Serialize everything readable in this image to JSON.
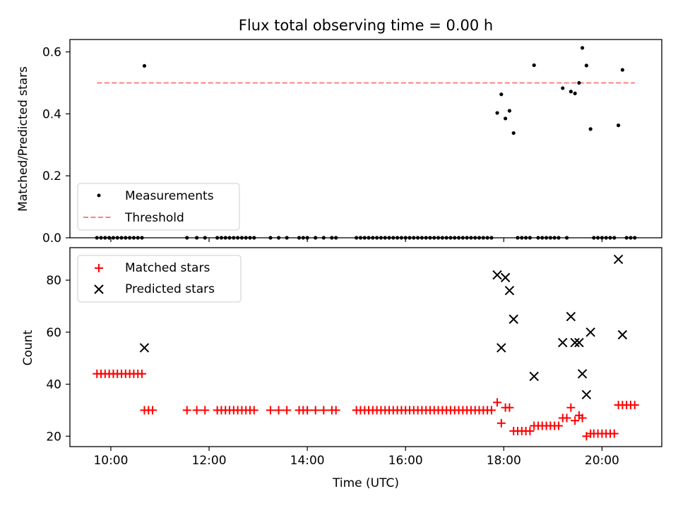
{
  "chart_data": [
    {
      "type": "scatter",
      "title": "Flux total observing time = 0.00 h",
      "xlabel": "",
      "ylabel": "Matched/Predicted stars",
      "xlim": [
        "09:10",
        "21:13"
      ],
      "ylim": [
        0,
        0.64
      ],
      "yticks": [
        0.0,
        0.2,
        0.4,
        0.6
      ],
      "ytick_labels": [
        "0.0",
        "0.2",
        "0.4",
        "0.6"
      ],
      "xticks": [
        "10:00",
        "12:00",
        "14:00",
        "16:00",
        "18:00",
        "20:00"
      ],
      "xtick_labels_visible": false,
      "legend": "lower-left",
      "threshold": {
        "name": "Threshold",
        "value": 0.5,
        "x_range": [
          "09:43",
          "20:40"
        ],
        "color": "#ff7f7f",
        "style": "dashed"
      },
      "series": [
        {
          "name": "Measurements",
          "color": "#000000",
          "marker": "dot",
          "points": [
            [
              "09:43",
              0
            ],
            [
              "09:48",
              0
            ],
            [
              "09:53",
              0
            ],
            [
              "09:58",
              0
            ],
            [
              "10:03",
              0
            ],
            [
              "10:08",
              0
            ],
            [
              "10:13",
              0
            ],
            [
              "10:18",
              0
            ],
            [
              "10:23",
              0
            ],
            [
              "10:28",
              0
            ],
            [
              "10:33",
              0
            ],
            [
              "10:38",
              0
            ],
            [
              "10:41",
              0.555
            ],
            [
              "11:33",
              0
            ],
            [
              "11:45",
              0
            ],
            [
              "11:55",
              0
            ],
            [
              "12:10",
              0
            ],
            [
              "12:15",
              0
            ],
            [
              "12:20",
              0
            ],
            [
              "12:25",
              0
            ],
            [
              "12:30",
              0
            ],
            [
              "12:35",
              0
            ],
            [
              "12:40",
              0
            ],
            [
              "12:45",
              0
            ],
            [
              "12:50",
              0
            ],
            [
              "12:55",
              0
            ],
            [
              "13:15",
              0
            ],
            [
              "13:25",
              0
            ],
            [
              "13:35",
              0
            ],
            [
              "13:50",
              0
            ],
            [
              "13:55",
              0
            ],
            [
              "14:00",
              0
            ],
            [
              "14:10",
              0
            ],
            [
              "14:20",
              0
            ],
            [
              "14:30",
              0
            ],
            [
              "14:35",
              0
            ],
            [
              "15:00",
              0
            ],
            [
              "15:05",
              0
            ],
            [
              "15:10",
              0
            ],
            [
              "15:15",
              0
            ],
            [
              "15:20",
              0
            ],
            [
              "15:25",
              0
            ],
            [
              "15:30",
              0
            ],
            [
              "15:35",
              0
            ],
            [
              "15:40",
              0
            ],
            [
              "15:45",
              0
            ],
            [
              "15:50",
              0
            ],
            [
              "15:55",
              0
            ],
            [
              "16:00",
              0
            ],
            [
              "16:05",
              0
            ],
            [
              "16:10",
              0
            ],
            [
              "16:15",
              0
            ],
            [
              "16:20",
              0
            ],
            [
              "16:25",
              0
            ],
            [
              "16:30",
              0
            ],
            [
              "16:35",
              0
            ],
            [
              "16:40",
              0
            ],
            [
              "16:45",
              0
            ],
            [
              "16:50",
              0
            ],
            [
              "16:55",
              0
            ],
            [
              "17:00",
              0
            ],
            [
              "17:05",
              0
            ],
            [
              "17:10",
              0
            ],
            [
              "17:15",
              0
            ],
            [
              "17:20",
              0
            ],
            [
              "17:25",
              0
            ],
            [
              "17:30",
              0
            ],
            [
              "17:35",
              0
            ],
            [
              "17:40",
              0
            ],
            [
              "17:45",
              0
            ],
            [
              "17:52",
              0.403
            ],
            [
              "17:57",
              0.463
            ],
            [
              "18:02",
              0.385
            ],
            [
              "18:07",
              0.41
            ],
            [
              "18:12",
              0.338
            ],
            [
              "18:17",
              0
            ],
            [
              "18:22",
              0
            ],
            [
              "18:27",
              0
            ],
            [
              "18:32",
              0
            ],
            [
              "18:37",
              0.557
            ],
            [
              "18:42",
              0
            ],
            [
              "18:47",
              0
            ],
            [
              "18:52",
              0
            ],
            [
              "18:57",
              0
            ],
            [
              "19:02",
              0
            ],
            [
              "19:07",
              0
            ],
            [
              "19:12",
              0.483
            ],
            [
              "19:17",
              0
            ],
            [
              "19:22",
              0.472
            ],
            [
              "19:27",
              0.466
            ],
            [
              "19:32",
              0.5
            ],
            [
              "19:36",
              0.613
            ],
            [
              "19:41",
              0.556
            ],
            [
              "19:46",
              0.351
            ],
            [
              "19:50",
              0
            ],
            [
              "19:55",
              0
            ],
            [
              "20:00",
              0
            ],
            [
              "20:05",
              0
            ],
            [
              "20:10",
              0
            ],
            [
              "20:15",
              0
            ],
            [
              "20:20",
              0.363
            ],
            [
              "20:25",
              0.542
            ],
            [
              "20:30",
              0
            ],
            [
              "20:35",
              0
            ],
            [
              "20:40",
              0
            ]
          ]
        }
      ]
    },
    {
      "type": "scatter",
      "title": "",
      "xlabel": "Time (UTC)",
      "ylabel": "Count",
      "xlim": [
        "09:10",
        "21:13"
      ],
      "ylim": [
        16,
        92.5
      ],
      "yticks": [
        20,
        40,
        60,
        80
      ],
      "ytick_labels": [
        "20",
        "40",
        "60",
        "80"
      ],
      "xticks": [
        "10:00",
        "12:00",
        "14:00",
        "16:00",
        "18:00",
        "20:00"
      ],
      "xtick_labels": [
        "10:00",
        "12:00",
        "14:00",
        "16:00",
        "18:00",
        "20:00"
      ],
      "legend": "upper-left",
      "series": [
        {
          "name": "Matched stars",
          "color": "#ff0000",
          "marker": "plus",
          "points": [
            [
              "09:43",
              44
            ],
            [
              "09:48",
              44
            ],
            [
              "09:53",
              44
            ],
            [
              "09:58",
              44
            ],
            [
              "10:03",
              44
            ],
            [
              "10:08",
              44
            ],
            [
              "10:13",
              44
            ],
            [
              "10:18",
              44
            ],
            [
              "10:23",
              44
            ],
            [
              "10:28",
              44
            ],
            [
              "10:33",
              44
            ],
            [
              "10:38",
              44
            ],
            [
              "10:41",
              30
            ],
            [
              "10:46",
              30
            ],
            [
              "10:51",
              30
            ],
            [
              "11:33",
              30
            ],
            [
              "11:45",
              30
            ],
            [
              "11:55",
              30
            ],
            [
              "12:10",
              30
            ],
            [
              "12:15",
              30
            ],
            [
              "12:20",
              30
            ],
            [
              "12:25",
              30
            ],
            [
              "12:30",
              30
            ],
            [
              "12:35",
              30
            ],
            [
              "12:40",
              30
            ],
            [
              "12:45",
              30
            ],
            [
              "12:50",
              30
            ],
            [
              "12:55",
              30
            ],
            [
              "13:15",
              30
            ],
            [
              "13:25",
              30
            ],
            [
              "13:35",
              30
            ],
            [
              "13:50",
              30
            ],
            [
              "13:55",
              30
            ],
            [
              "14:00",
              30
            ],
            [
              "14:10",
              30
            ],
            [
              "14:20",
              30
            ],
            [
              "14:30",
              30
            ],
            [
              "14:35",
              30
            ],
            [
              "15:00",
              30
            ],
            [
              "15:05",
              30
            ],
            [
              "15:10",
              30
            ],
            [
              "15:15",
              30
            ],
            [
              "15:20",
              30
            ],
            [
              "15:25",
              30
            ],
            [
              "15:30",
              30
            ],
            [
              "15:35",
              30
            ],
            [
              "15:40",
              30
            ],
            [
              "15:45",
              30
            ],
            [
              "15:50",
              30
            ],
            [
              "15:55",
              30
            ],
            [
              "16:00",
              30
            ],
            [
              "16:05",
              30
            ],
            [
              "16:10",
              30
            ],
            [
              "16:15",
              30
            ],
            [
              "16:20",
              30
            ],
            [
              "16:25",
              30
            ],
            [
              "16:30",
              30
            ],
            [
              "16:35",
              30
            ],
            [
              "16:40",
              30
            ],
            [
              "16:45",
              30
            ],
            [
              "16:50",
              30
            ],
            [
              "16:55",
              30
            ],
            [
              "17:00",
              30
            ],
            [
              "17:05",
              30
            ],
            [
              "17:10",
              30
            ],
            [
              "17:15",
              30
            ],
            [
              "17:20",
              30
            ],
            [
              "17:25",
              30
            ],
            [
              "17:30",
              30
            ],
            [
              "17:35",
              30
            ],
            [
              "17:40",
              30
            ],
            [
              "17:45",
              30
            ],
            [
              "17:52",
              33
            ],
            [
              "17:57",
              25
            ],
            [
              "18:02",
              31
            ],
            [
              "18:07",
              31
            ],
            [
              "18:12",
              22
            ],
            [
              "18:17",
              22
            ],
            [
              "18:22",
              22
            ],
            [
              "18:27",
              22
            ],
            [
              "18:32",
              22
            ],
            [
              "18:37",
              24
            ],
            [
              "18:42",
              24
            ],
            [
              "18:47",
              24
            ],
            [
              "18:52",
              24
            ],
            [
              "18:57",
              24
            ],
            [
              "19:02",
              24
            ],
            [
              "19:07",
              24
            ],
            [
              "19:12",
              27
            ],
            [
              "19:17",
              27
            ],
            [
              "19:22",
              31
            ],
            [
              "19:27",
              26
            ],
            [
              "19:32",
              28
            ],
            [
              "19:36",
              27
            ],
            [
              "19:41",
              20
            ],
            [
              "19:46",
              21
            ],
            [
              "19:50",
              21
            ],
            [
              "19:55",
              21
            ],
            [
              "20:00",
              21
            ],
            [
              "20:05",
              21
            ],
            [
              "20:10",
              21
            ],
            [
              "20:15",
              21
            ],
            [
              "20:20",
              32
            ],
            [
              "20:25",
              32
            ],
            [
              "20:30",
              32
            ],
            [
              "20:35",
              32
            ],
            [
              "20:40",
              32
            ]
          ]
        },
        {
          "name": "Predicted stars",
          "color": "#000000",
          "marker": "x",
          "points": [
            [
              "10:41",
              54
            ],
            [
              "17:52",
              82
            ],
            [
              "17:57",
              54
            ],
            [
              "18:02",
              81
            ],
            [
              "18:07",
              76
            ],
            [
              "18:12",
              65
            ],
            [
              "18:37",
              43
            ],
            [
              "19:12",
              56
            ],
            [
              "19:22",
              66
            ],
            [
              "19:27",
              56
            ],
            [
              "19:32",
              56
            ],
            [
              "19:36",
              44
            ],
            [
              "19:41",
              36
            ],
            [
              "19:46",
              60
            ],
            [
              "20:20",
              88
            ],
            [
              "20:25",
              59
            ]
          ]
        }
      ]
    }
  ]
}
